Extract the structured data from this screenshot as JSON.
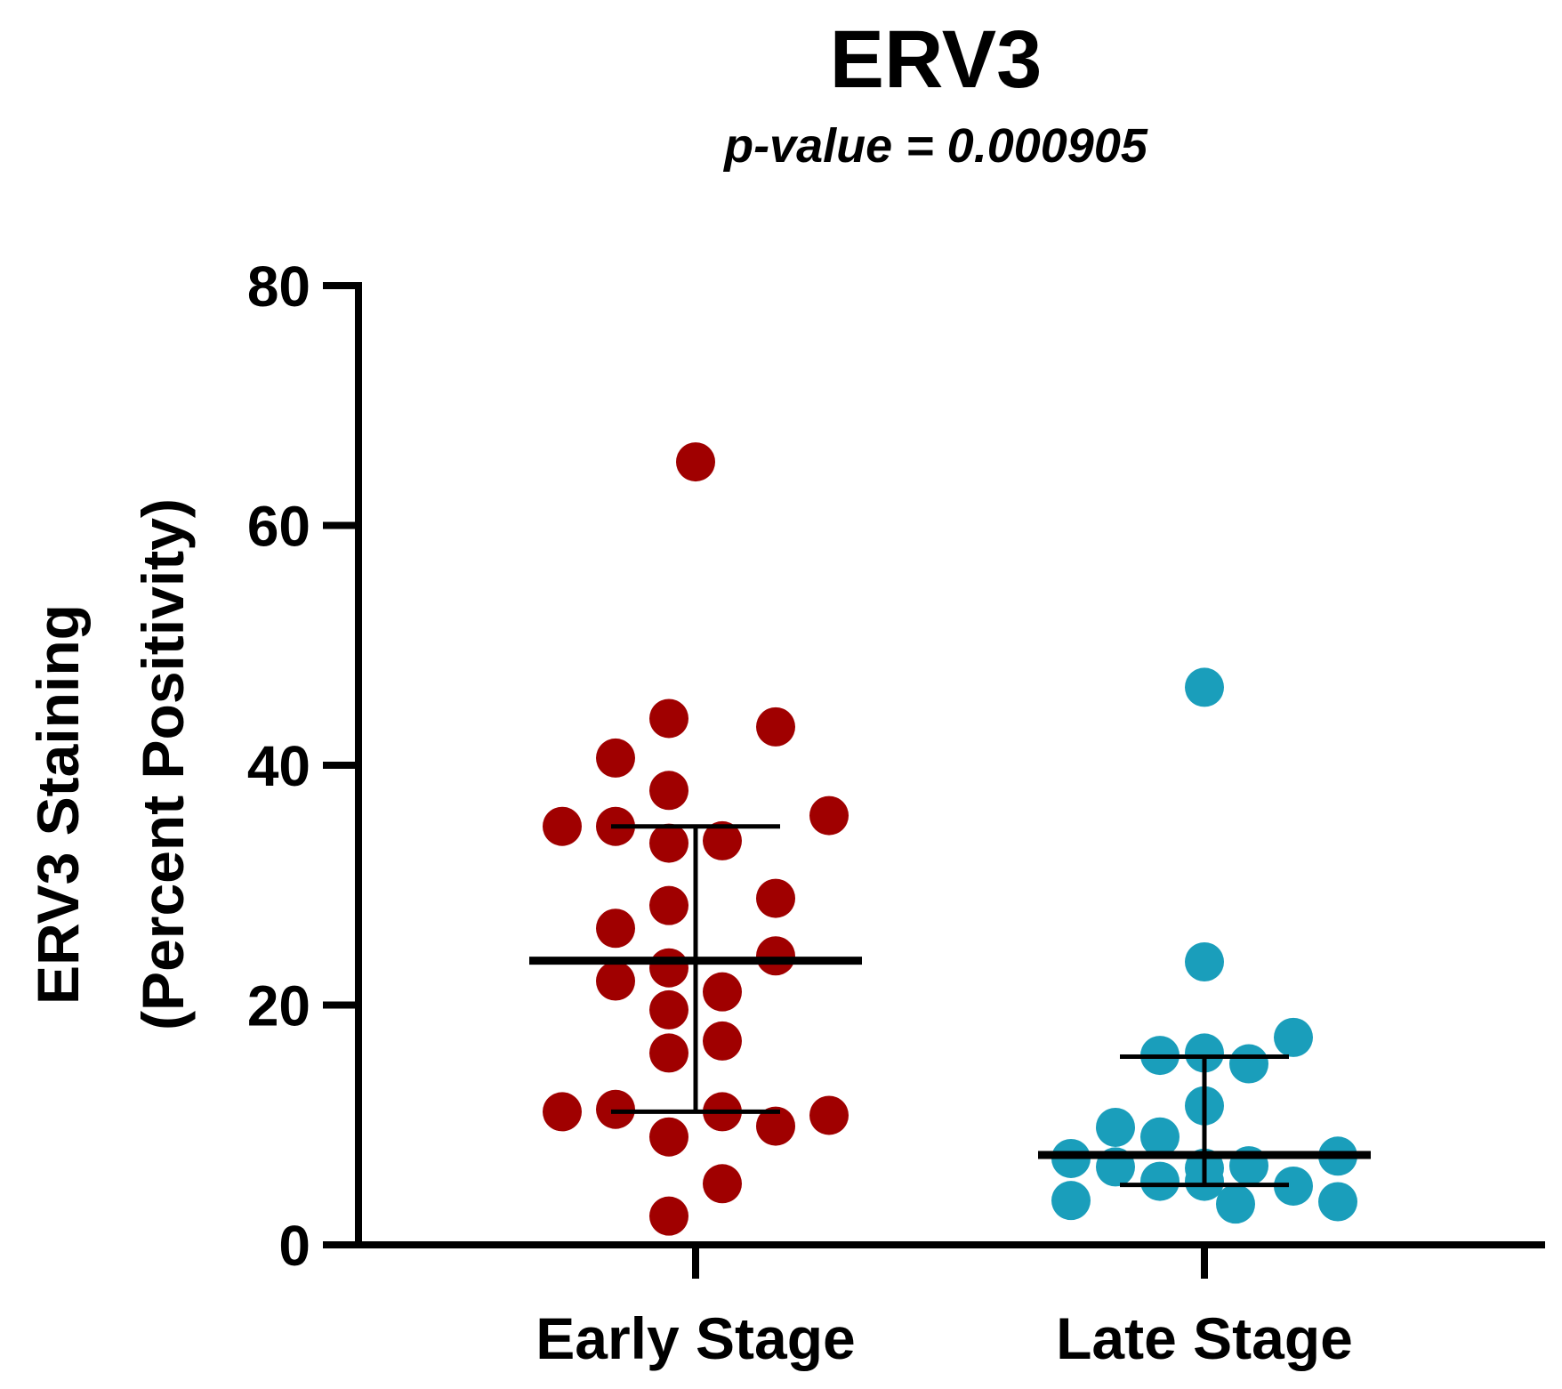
{
  "chart_data": {
    "type": "scatter",
    "title": "ERV3",
    "subtitle": "p-value = 0.000905",
    "ylabel_line1": "ERV3 Staining",
    "ylabel_line2": "(Percent  Positivity)",
    "xlabel": "",
    "ylim": [
      0,
      80
    ],
    "yticks": [
      0,
      20,
      40,
      60,
      80
    ],
    "categories": [
      "Early Stage",
      "Late Stage"
    ],
    "series": [
      {
        "name": "Early Stage",
        "color": "#a00000",
        "points": [
          {
            "x": 0,
            "y": 65.3
          },
          {
            "x": -0.06,
            "y": 43.9
          },
          {
            "x": 0.18,
            "y": 43.2
          },
          {
            "x": -0.18,
            "y": 40.6
          },
          {
            "x": -0.06,
            "y": 37.9
          },
          {
            "x": -0.3,
            "y": 34.9
          },
          {
            "x": -0.18,
            "y": 34.9
          },
          {
            "x": 0.3,
            "y": 35.8
          },
          {
            "x": -0.06,
            "y": 33.5
          },
          {
            "x": 0.06,
            "y": 33.7
          },
          {
            "x": -0.06,
            "y": 28.3
          },
          {
            "x": 0.18,
            "y": 28.9
          },
          {
            "x": -0.18,
            "y": 26.4
          },
          {
            "x": 0.18,
            "y": 24.1
          },
          {
            "x": -0.06,
            "y": 23.1
          },
          {
            "x": -0.18,
            "y": 22.0
          },
          {
            "x": 0.06,
            "y": 21.1
          },
          {
            "x": -0.06,
            "y": 19.6
          },
          {
            "x": 0.06,
            "y": 17.0
          },
          {
            "x": -0.06,
            "y": 16.0
          },
          {
            "x": -0.3,
            "y": 11.1
          },
          {
            "x": -0.18,
            "y": 11.3
          },
          {
            "x": 0.06,
            "y": 11.1
          },
          {
            "x": 0.18,
            "y": 9.9
          },
          {
            "x": 0.3,
            "y": 10.8
          },
          {
            "x": -0.06,
            "y": 9.0
          },
          {
            "x": 0.06,
            "y": 5.1
          },
          {
            "x": -0.06,
            "y": 2.4
          }
        ],
        "median": 23.7,
        "q1": 11.1,
        "q3": 34.9
      },
      {
        "name": "Late Stage",
        "color": "#1a9ebb",
        "points": [
          {
            "x": 0,
            "y": 46.5
          },
          {
            "x": 0,
            "y": 23.6
          },
          {
            "x": 0.2,
            "y": 17.3
          },
          {
            "x": -0.1,
            "y": 15.8
          },
          {
            "x": 0,
            "y": 16.0
          },
          {
            "x": 0.1,
            "y": 15.1
          },
          {
            "x": 0,
            "y": 11.6
          },
          {
            "x": -0.2,
            "y": 9.8
          },
          {
            "x": -0.1,
            "y": 9.0
          },
          {
            "x": -0.3,
            "y": 7.2
          },
          {
            "x": -0.2,
            "y": 6.5
          },
          {
            "x": 0,
            "y": 6.4
          },
          {
            "x": 0.1,
            "y": 6.6
          },
          {
            "x": 0.3,
            "y": 7.4
          },
          {
            "x": -0.1,
            "y": 5.3
          },
          {
            "x": 0,
            "y": 5.3
          },
          {
            "x": 0.2,
            "y": 4.9
          },
          {
            "x": -0.3,
            "y": 3.7
          },
          {
            "x": 0.07,
            "y": 3.4
          },
          {
            "x": 0.3,
            "y": 3.6
          }
        ],
        "median": 7.5,
        "q1": 5.0,
        "q3": 15.7
      }
    ]
  }
}
